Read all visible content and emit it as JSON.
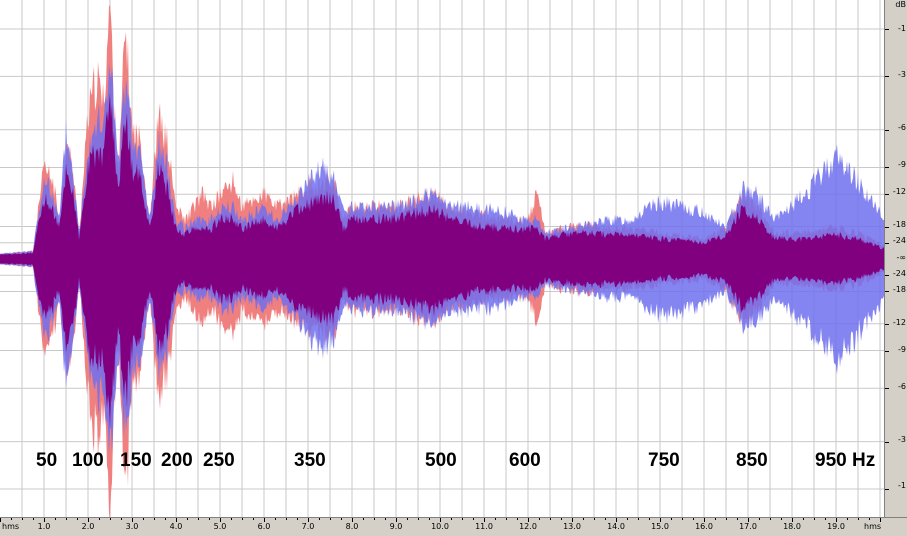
{
  "colors": {
    "background": "#ffffff",
    "grid": "#c9c9c9",
    "channel_red": "#f08080",
    "channel_blue": "#7070ee",
    "overlap": "#800080",
    "ruler": "#d4d0c8"
  },
  "db_ruler": {
    "unit": "dB",
    "center_label": "-∞",
    "labels": [
      "-1",
      "-3",
      "-6",
      "-9",
      "-12",
      "-18",
      "-24",
      "-24",
      "-18",
      "-12",
      "-9",
      "-6",
      "-3",
      "-1"
    ]
  },
  "time_ruler": {
    "unit_left": "hms",
    "unit_right": "hms",
    "labels": [
      "1.0",
      "2.0",
      "3.0",
      "4.0",
      "5.0",
      "6.0",
      "7.0",
      "8.0",
      "9.0",
      "10.0",
      "11.0",
      "12.0",
      "13.0",
      "14.0",
      "15.0",
      "16.0",
      "17.0",
      "18.0",
      "19.0"
    ]
  },
  "annotations": {
    "frequencies": [
      "50",
      "100",
      "150",
      "200",
      "250",
      "350",
      "500",
      "600",
      "750",
      "850",
      "950 Hz"
    ]
  },
  "waveform": {
    "time_range_s": [
      0,
      20.1
    ],
    "red_envelope_db_fraction": [
      [
        0.0,
        0.02
      ],
      [
        0.75,
        0.03
      ],
      [
        0.8,
        0.1
      ],
      [
        1.0,
        0.35
      ],
      [
        1.2,
        0.3
      ],
      [
        1.35,
        0.15
      ],
      [
        1.5,
        0.45
      ],
      [
        1.65,
        0.35
      ],
      [
        1.8,
        0.1
      ],
      [
        2.0,
        0.55
      ],
      [
        2.2,
        0.7
      ],
      [
        2.35,
        0.6
      ],
      [
        2.5,
        1.0
      ],
      [
        2.6,
        0.55
      ],
      [
        2.7,
        0.35
      ],
      [
        2.85,
        0.9
      ],
      [
        3.0,
        0.5
      ],
      [
        3.2,
        0.45
      ],
      [
        3.4,
        0.15
      ],
      [
        3.6,
        0.55
      ],
      [
        3.8,
        0.45
      ],
      [
        4.0,
        0.2
      ],
      [
        4.2,
        0.15
      ],
      [
        4.4,
        0.2
      ],
      [
        4.6,
        0.25
      ],
      [
        4.8,
        0.2
      ],
      [
        5.0,
        0.25
      ],
      [
        5.3,
        0.3
      ],
      [
        5.5,
        0.2
      ],
      [
        6.0,
        0.25
      ],
      [
        6.3,
        0.2
      ],
      [
        6.8,
        0.25
      ],
      [
        7.3,
        0.3
      ],
      [
        7.6,
        0.3
      ],
      [
        7.8,
        0.15
      ],
      [
        8.0,
        0.2
      ],
      [
        8.5,
        0.2
      ],
      [
        9.0,
        0.2
      ],
      [
        9.8,
        0.25
      ],
      [
        10.2,
        0.2
      ],
      [
        10.8,
        0.17
      ],
      [
        11.5,
        0.15
      ],
      [
        12.0,
        0.15
      ],
      [
        12.2,
        0.25
      ],
      [
        12.4,
        0.1
      ],
      [
        12.8,
        0.12
      ],
      [
        13.3,
        0.13
      ],
      [
        13.8,
        0.12
      ],
      [
        14.3,
        0.12
      ],
      [
        15.0,
        0.1
      ],
      [
        16.0,
        0.08
      ],
      [
        16.5,
        0.12
      ],
      [
        16.9,
        0.25
      ],
      [
        17.2,
        0.2
      ],
      [
        17.6,
        0.1
      ],
      [
        18.3,
        0.1
      ],
      [
        19.0,
        0.12
      ],
      [
        19.5,
        0.1
      ],
      [
        20.1,
        0.05
      ]
    ],
    "blue_envelope_db_fraction": [
      [
        0.0,
        0.02
      ],
      [
        0.75,
        0.03
      ],
      [
        0.8,
        0.1
      ],
      [
        1.0,
        0.3
      ],
      [
        1.2,
        0.25
      ],
      [
        1.35,
        0.15
      ],
      [
        1.5,
        0.5
      ],
      [
        1.65,
        0.35
      ],
      [
        1.8,
        0.1
      ],
      [
        2.0,
        0.45
      ],
      [
        2.2,
        0.55
      ],
      [
        2.35,
        0.5
      ],
      [
        2.5,
        0.8
      ],
      [
        2.6,
        0.55
      ],
      [
        2.7,
        0.35
      ],
      [
        2.85,
        0.7
      ],
      [
        3.0,
        0.45
      ],
      [
        3.2,
        0.4
      ],
      [
        3.4,
        0.15
      ],
      [
        3.6,
        0.45
      ],
      [
        3.8,
        0.35
      ],
      [
        4.0,
        0.15
      ],
      [
        4.2,
        0.12
      ],
      [
        4.4,
        0.15
      ],
      [
        4.6,
        0.15
      ],
      [
        4.8,
        0.15
      ],
      [
        5.0,
        0.2
      ],
      [
        5.3,
        0.2
      ],
      [
        5.5,
        0.15
      ],
      [
        6.0,
        0.2
      ],
      [
        6.3,
        0.15
      ],
      [
        6.8,
        0.25
      ],
      [
        7.3,
        0.35
      ],
      [
        7.6,
        0.3
      ],
      [
        7.8,
        0.18
      ],
      [
        8.0,
        0.2
      ],
      [
        8.5,
        0.2
      ],
      [
        9.0,
        0.2
      ],
      [
        9.8,
        0.25
      ],
      [
        10.2,
        0.2
      ],
      [
        10.8,
        0.2
      ],
      [
        11.5,
        0.18
      ],
      [
        12.0,
        0.15
      ],
      [
        12.2,
        0.15
      ],
      [
        12.4,
        0.1
      ],
      [
        12.8,
        0.12
      ],
      [
        13.3,
        0.13
      ],
      [
        13.8,
        0.15
      ],
      [
        14.3,
        0.15
      ],
      [
        15.0,
        0.22
      ],
      [
        16.0,
        0.18
      ],
      [
        16.5,
        0.12
      ],
      [
        16.9,
        0.28
      ],
      [
        17.2,
        0.25
      ],
      [
        17.6,
        0.15
      ],
      [
        18.3,
        0.25
      ],
      [
        19.0,
        0.4
      ],
      [
        19.5,
        0.3
      ],
      [
        20.1,
        0.15
      ]
    ]
  }
}
